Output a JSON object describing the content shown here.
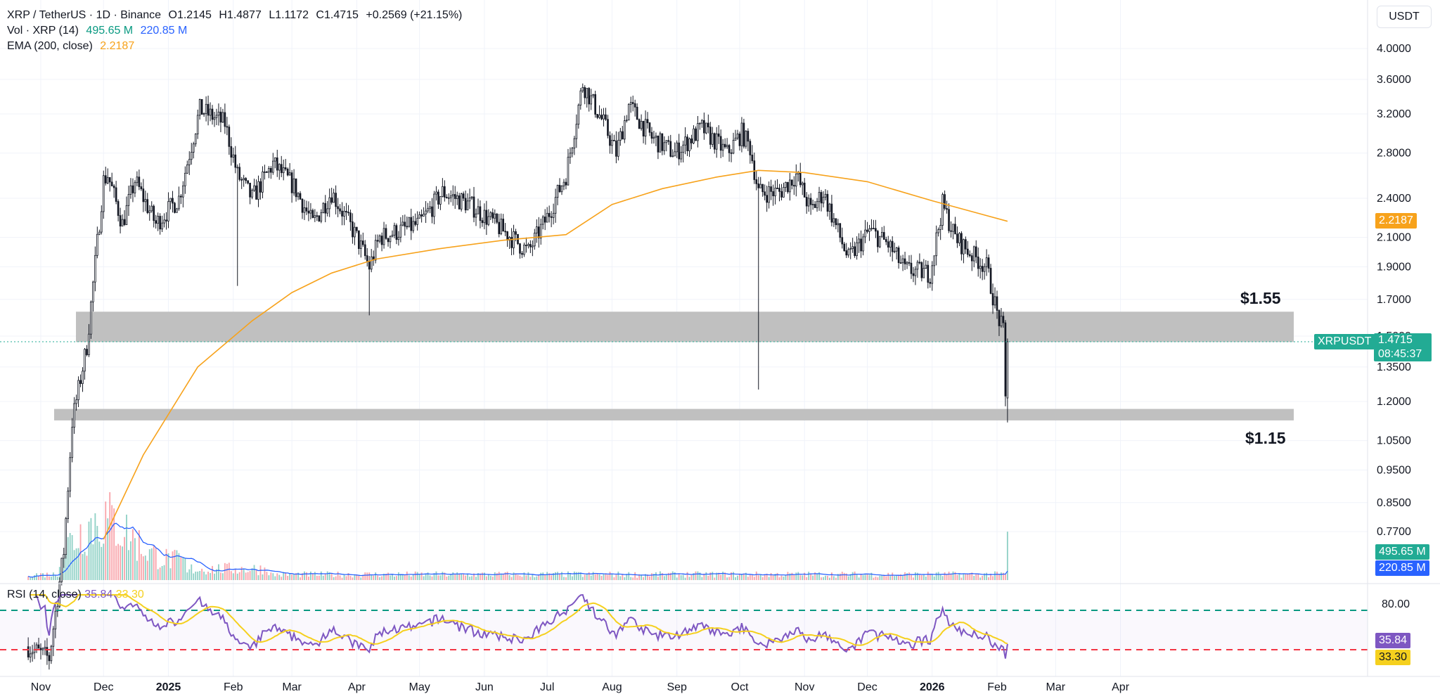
{
  "header": {
    "symbol": "XRP / TetherUS · 1D · Binance",
    "open": "O1.2145",
    "high": "H1.4877",
    "low": "L1.1172",
    "close": "C1.4715",
    "change": "+0.2569 (+21.15%)",
    "change_color": "#089981",
    "vol_label": "Vol · XRP (14)",
    "vol_value": "495.65 M",
    "vol_ma_value": "220.85 M",
    "ema_label": "EMA (200, close)",
    "ema_value": "2.2187"
  },
  "currency_button": "USDT",
  "price_axis": {
    "scale": "log",
    "ticks": [
      "4.0000",
      "3.6000",
      "3.2000",
      "2.8000",
      "2.4000",
      "2.1000",
      "1.9000",
      "1.7000",
      "1.5000",
      "1.3500",
      "1.2000",
      "1.0500",
      "0.9500",
      "0.8500",
      "0.7700"
    ]
  },
  "time_axis": {
    "labels": [
      "Nov",
      "Dec",
      "2025",
      "Feb",
      "Mar",
      "Apr",
      "May",
      "Jun",
      "Jul",
      "Aug",
      "Sep",
      "Oct",
      "Nov",
      "Dec",
      "2026",
      "Feb",
      "Mar",
      "Apr"
    ],
    "bold": [
      "2025",
      "2026"
    ]
  },
  "tags": {
    "ema": "2.2187",
    "symbol": "XRPUSDT",
    "last_price": "1.4715",
    "countdown": "08:45:37",
    "vol": "495.65 M",
    "vol_ma": "220.85 M",
    "rsi": "35.84",
    "rsi_ma": "33.30"
  },
  "annotations": {
    "upper_zone": "$1.55",
    "lower_zone": "$1.15"
  },
  "rsi_pane": {
    "label": "RSI (14, close)",
    "value": "35.84",
    "ma_value": "33.30",
    "ticks": [
      "80.00"
    ],
    "upper_band": 70,
    "lower_band": 30
  },
  "colors": {
    "up": "#089981",
    "down": "#f23645",
    "candle": "#131722",
    "ema": "#f7a21b",
    "vol_ma": "#2962ff",
    "rsi": "#7e57c2",
    "rsi_ma": "#f5d01e",
    "last_price": "#22ab94",
    "zone": "#bdbdbd"
  },
  "chart_data": {
    "type": "candlestick",
    "title": "XRP / TetherUS · 1D · Binance",
    "x_range": [
      "2024-10-20",
      "2026-04-05"
    ],
    "y_scale": "log",
    "ylim": [
      0.74,
      4.15
    ],
    "ohlc_waypoints": [
      {
        "date": "2024-10-26",
        "close": 0.52
      },
      {
        "date": "2024-11-05",
        "close": 0.5
      },
      {
        "date": "2024-11-12",
        "close": 0.72
      },
      {
        "date": "2024-11-16",
        "close": 1.12
      },
      {
        "date": "2024-11-23",
        "close": 1.45
      },
      {
        "date": "2024-12-01",
        "close": 2.55
      },
      {
        "date": "2024-12-03",
        "close": 2.6
      },
      {
        "date": "2024-12-10",
        "close": 2.2
      },
      {
        "date": "2024-12-16",
        "close": 2.55
      },
      {
        "date": "2024-12-26",
        "close": 2.2
      },
      {
        "date": "2025-01-06",
        "close": 2.4
      },
      {
        "date": "2025-01-16",
        "close": 3.25
      },
      {
        "date": "2025-01-28",
        "close": 3.1
      },
      {
        "date": "2025-02-03",
        "close": 2.6
      },
      {
        "date": "2025-02-10",
        "close": 2.4
      },
      {
        "date": "2025-02-20",
        "close": 2.7
      },
      {
        "date": "2025-03-02",
        "close": 2.5
      },
      {
        "date": "2025-03-11",
        "close": 2.2
      },
      {
        "date": "2025-03-20",
        "close": 2.45
      },
      {
        "date": "2025-04-01",
        "close": 2.1
      },
      {
        "date": "2025-04-07",
        "close": 1.9
      },
      {
        "date": "2025-04-12",
        "close": 2.1
      },
      {
        "date": "2025-05-01",
        "close": 2.2
      },
      {
        "date": "2025-05-12",
        "close": 2.45
      },
      {
        "date": "2025-05-25",
        "close": 2.35
      },
      {
        "date": "2025-06-06",
        "close": 2.2
      },
      {
        "date": "2025-06-22",
        "close": 2.0
      },
      {
        "date": "2025-07-01",
        "close": 2.25
      },
      {
        "date": "2025-07-10",
        "close": 2.6
      },
      {
        "date": "2025-07-18",
        "close": 3.55
      },
      {
        "date": "2025-07-28",
        "close": 3.1
      },
      {
        "date": "2025-08-03",
        "close": 2.8
      },
      {
        "date": "2025-08-09",
        "close": 3.3
      },
      {
        "date": "2025-08-20",
        "close": 2.95
      },
      {
        "date": "2025-08-31",
        "close": 2.8
      },
      {
        "date": "2025-09-13",
        "close": 3.05
      },
      {
        "date": "2025-09-25",
        "close": 2.8
      },
      {
        "date": "2025-10-02",
        "close": 3.0
      },
      {
        "date": "2025-10-06",
        "close": 2.85
      },
      {
        "date": "2025-10-10",
        "close": 2.45
      },
      {
        "date": "2025-10-20",
        "close": 2.45
      },
      {
        "date": "2025-10-28",
        "close": 2.6
      },
      {
        "date": "2025-11-04",
        "close": 2.3
      },
      {
        "date": "2025-11-10",
        "close": 2.45
      },
      {
        "date": "2025-11-18",
        "close": 2.1
      },
      {
        "date": "2025-11-22",
        "close": 1.95
      },
      {
        "date": "2025-12-02",
        "close": 2.15
      },
      {
        "date": "2025-12-11",
        "close": 2.05
      },
      {
        "date": "2025-12-19",
        "close": 1.88
      },
      {
        "date": "2025-12-31",
        "close": 1.86
      },
      {
        "date": "2026-01-06",
        "close": 2.35
      },
      {
        "date": "2026-01-12",
        "close": 2.1
      },
      {
        "date": "2026-01-20",
        "close": 1.98
      },
      {
        "date": "2026-01-27",
        "close": 1.9
      },
      {
        "date": "2026-02-01",
        "close": 1.62
      },
      {
        "date": "2026-02-04",
        "close": 1.52
      },
      {
        "date": "2026-02-05",
        "close": 1.21
      },
      {
        "date": "2026-02-06",
        "close": 1.47
      }
    ],
    "last_candle": {
      "date": "2026-02-06",
      "open": 1.2145,
      "high": 1.4877,
      "low": 1.1172,
      "close": 1.4715
    },
    "wicks": [
      {
        "date": "2025-02-03",
        "low": 1.78
      },
      {
        "date": "2025-04-07",
        "low": 1.61
      },
      {
        "date": "2025-10-10",
        "low": 1.25
      }
    ],
    "ema200": [
      {
        "date": "2024-12-01",
        "value": 0.75
      },
      {
        "date": "2024-12-20",
        "value": 1.0
      },
      {
        "date": "2025-01-15",
        "value": 1.35
      },
      {
        "date": "2025-02-10",
        "value": 1.58
      },
      {
        "date": "2025-03-01",
        "value": 1.74
      },
      {
        "date": "2025-03-20",
        "value": 1.86
      },
      {
        "date": "2025-04-10",
        "value": 1.95
      },
      {
        "date": "2025-05-10",
        "value": 2.02
      },
      {
        "date": "2025-06-10",
        "value": 2.08
      },
      {
        "date": "2025-07-10",
        "value": 2.12
      },
      {
        "date": "2025-08-01",
        "value": 2.35
      },
      {
        "date": "2025-08-25",
        "value": 2.48
      },
      {
        "date": "2025-09-20",
        "value": 2.58
      },
      {
        "date": "2025-10-10",
        "value": 2.64
      },
      {
        "date": "2025-11-01",
        "value": 2.62
      },
      {
        "date": "2025-12-01",
        "value": 2.54
      },
      {
        "date": "2026-01-01",
        "value": 2.38
      },
      {
        "date": "2026-02-06",
        "value": 2.2187
      }
    ],
    "zones": [
      {
        "label": "$1.55",
        "from": 1.47,
        "to": 1.63
      },
      {
        "label": "$1.15",
        "from": 1.125,
        "to": 1.17
      }
    ],
    "volume_ma14_last": 220.85,
    "volume_last": 495.65,
    "rsi_last": 35.84,
    "rsi_ma_last": 33.3
  }
}
